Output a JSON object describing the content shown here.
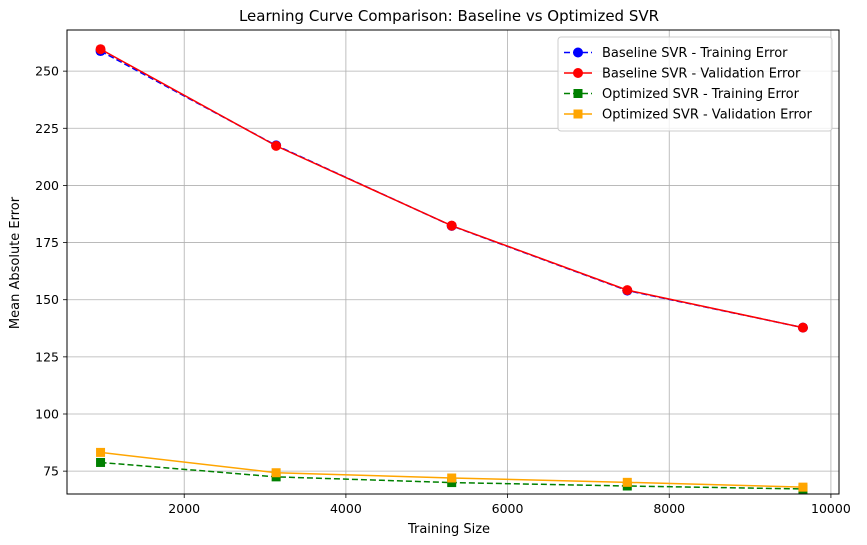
{
  "chart_data": {
    "type": "line",
    "title": "Learning Curve Comparison: Baseline vs Optimized SVR",
    "xlabel": "Training Size",
    "ylabel": "Mean Absolute Error",
    "xlim": [
      550,
      10100
    ],
    "ylim": [
      65,
      268
    ],
    "x_ticks": [
      2000,
      4000,
      6000,
      8000,
      10000
    ],
    "y_ticks": [
      75,
      100,
      125,
      150,
      175,
      200,
      225,
      250
    ],
    "grid": true,
    "legend_position": "top-right",
    "x": [
      965,
      3137,
      5309,
      7481,
      9654
    ],
    "series": [
      {
        "name": "Baseline SVR - Training Error",
        "values": [
          258.8,
          217.5,
          182.3,
          154.0,
          137.8
        ],
        "color": "#0000ff",
        "style": "dashed",
        "marker": "circle"
      },
      {
        "name": "Baseline SVR - Validation Error",
        "values": [
          259.6,
          217.3,
          182.4,
          154.2,
          137.8
        ],
        "color": "#ff0000",
        "style": "solid",
        "marker": "circle"
      },
      {
        "name": "Optimized SVR - Training Error",
        "values": [
          78.8,
          72.5,
          70.0,
          68.5,
          67.2
        ],
        "color": "#008000",
        "style": "dashed",
        "marker": "square"
      },
      {
        "name": "Optimized SVR - Validation Error",
        "values": [
          83.2,
          74.3,
          72.0,
          70.1,
          68.0
        ],
        "color": "#ffa500",
        "style": "solid",
        "marker": "square"
      }
    ]
  }
}
